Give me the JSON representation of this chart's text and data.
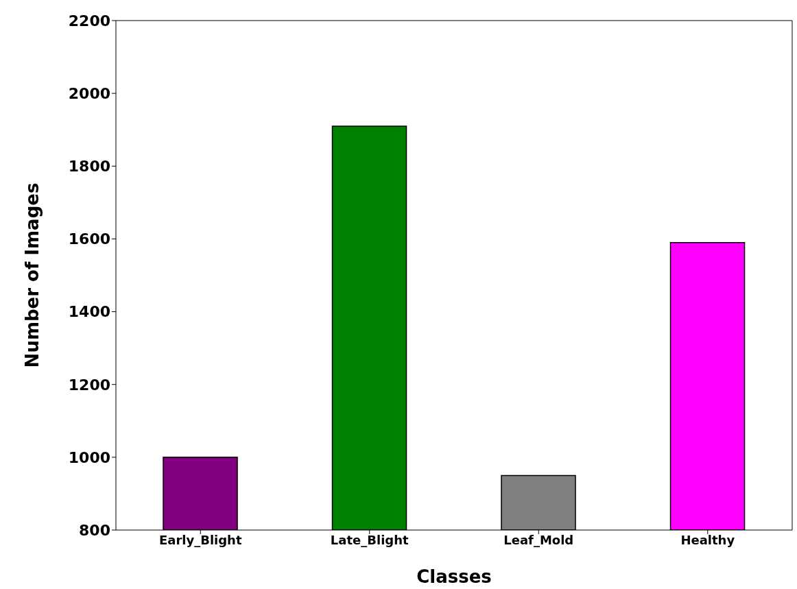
{
  "chart_data": {
    "type": "bar",
    "xlabel": "Classes",
    "ylabel": "Number of Images",
    "categories": [
      "Early_Blight",
      "Late_Blight",
      "Leaf_Mold",
      "Healthy"
    ],
    "values": [
      1000,
      1910,
      950,
      1590
    ],
    "colors": [
      "#800080",
      "#008000",
      "#808080",
      "#ff00ff"
    ],
    "ylim": [
      800,
      2200
    ],
    "yticks": [
      800,
      1000,
      1200,
      1400,
      1600,
      1800,
      2000,
      2200
    ]
  }
}
